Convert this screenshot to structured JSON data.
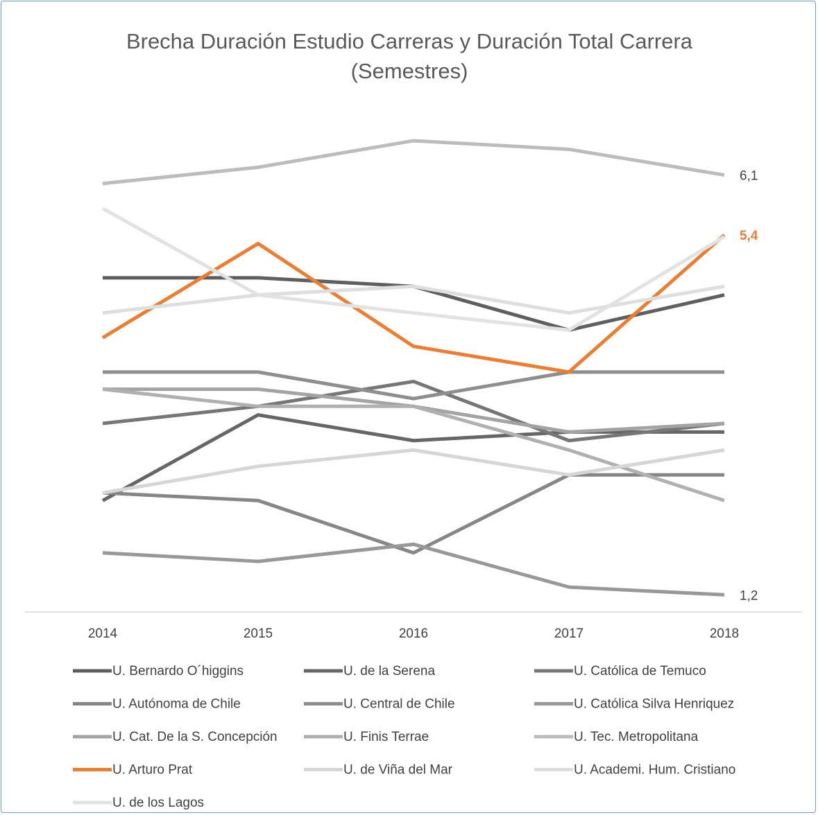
{
  "chart_data": {
    "type": "line",
    "title": "Brecha Duración Estudio Carreras y Duración Total Carrera (Semestres)",
    "categories": [
      "2014",
      "2015",
      "2016",
      "2017",
      "2018"
    ],
    "ylim": [
      1,
      6.8
    ],
    "series": [
      {
        "name": "U. Bernardo O´higgins",
        "color": "#5f5f5f",
        "values": [
          4.9,
          4.9,
          4.8,
          4.29,
          4.7
        ]
      },
      {
        "name": "U. de la Serena",
        "color": "#666666",
        "values": [
          2.3,
          3.3,
          3.0,
          3.1,
          3.1
        ]
      },
      {
        "name": "U. Católica de Temuco",
        "color": "#767676",
        "values": [
          3.2,
          3.4,
          3.69,
          3.0,
          3.2
        ]
      },
      {
        "name": "U. Autónoma de Chile",
        "color": "#868686",
        "values": [
          2.39,
          2.3,
          1.69,
          2.6,
          2.6
        ]
      },
      {
        "name": "U. Central de Chile",
        "color": "#8e8e8e",
        "values": [
          3.8,
          3.8,
          3.49,
          3.8,
          3.8
        ]
      },
      {
        "name": "U. Católica Silva Henriquez",
        "color": "#989898",
        "values": [
          1.69,
          1.59,
          1.79,
          1.29,
          1.2
        ],
        "value_labels": [
          null,
          null,
          null,
          null,
          "1,2"
        ]
      },
      {
        "name": "U. Cat. De la S. Concepción",
        "color": "#a3a3a3",
        "values": [
          3.6,
          3.6,
          3.4,
          3.1,
          3.2
        ]
      },
      {
        "name": "U. Finis Terrae",
        "color": "#b0b0b0",
        "values": [
          3.6,
          3.4,
          3.4,
          2.89,
          2.3
        ]
      },
      {
        "name": "U. Tec. Metropolitana",
        "color": "#bcbcbc",
        "values": [
          6.0,
          6.19,
          6.5,
          6.4,
          6.1
        ],
        "value_labels": [
          null,
          null,
          null,
          null,
          "6,1"
        ]
      },
      {
        "name": "U. Arturo Prat",
        "color": "#ed7d31",
        "values": [
          4.2,
          5.3,
          4.1,
          3.8,
          5.4
        ],
        "value_labels": [
          null,
          null,
          null,
          null,
          "5,4"
        ]
      },
      {
        "name": "U. de Viña del Mar",
        "color": "#d6d6d6",
        "values": [
          2.39,
          2.7,
          2.89,
          2.6,
          2.89
        ]
      },
      {
        "name": "U. Academi. Hum. Cristiano",
        "color": "#dedede",
        "values": [
          4.49,
          4.7,
          4.8,
          4.49,
          4.8
        ]
      },
      {
        "name": "U. de los Lagos",
        "color": "#e2e2e2",
        "values": [
          5.71,
          4.7,
          4.49,
          4.29,
          5.38
        ]
      }
    ]
  }
}
